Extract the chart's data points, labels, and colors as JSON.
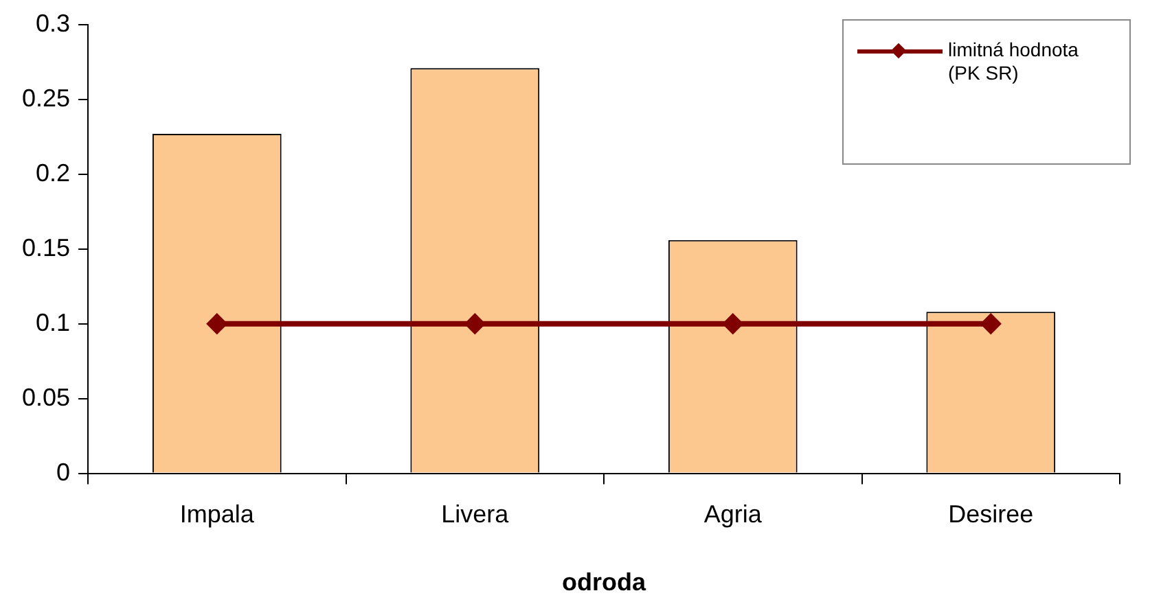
{
  "chart_data": {
    "type": "bar",
    "xlabel": "odroda",
    "categories": [
      "Impala",
      "Livera",
      "Agria",
      "Desiree"
    ],
    "series": [
      {
        "color": "#fcc890",
        "values": [
          0.227,
          0.271,
          0.156,
          0.108
        ]
      },
      {
        "type": "line",
        "name": "limitná hodnota (PK SR)",
        "color": "#800000",
        "values": [
          0.1,
          0.1,
          0.1,
          0.1
        ]
      }
    ],
    "ylim": [
      0,
      0.3
    ],
    "yticks": [
      0,
      0.05,
      0.1,
      0.15,
      0.2,
      0.25,
      0.3
    ],
    "grid": false,
    "legend": "top right",
    "marker": "diamond",
    "line_style": "solid"
  }
}
